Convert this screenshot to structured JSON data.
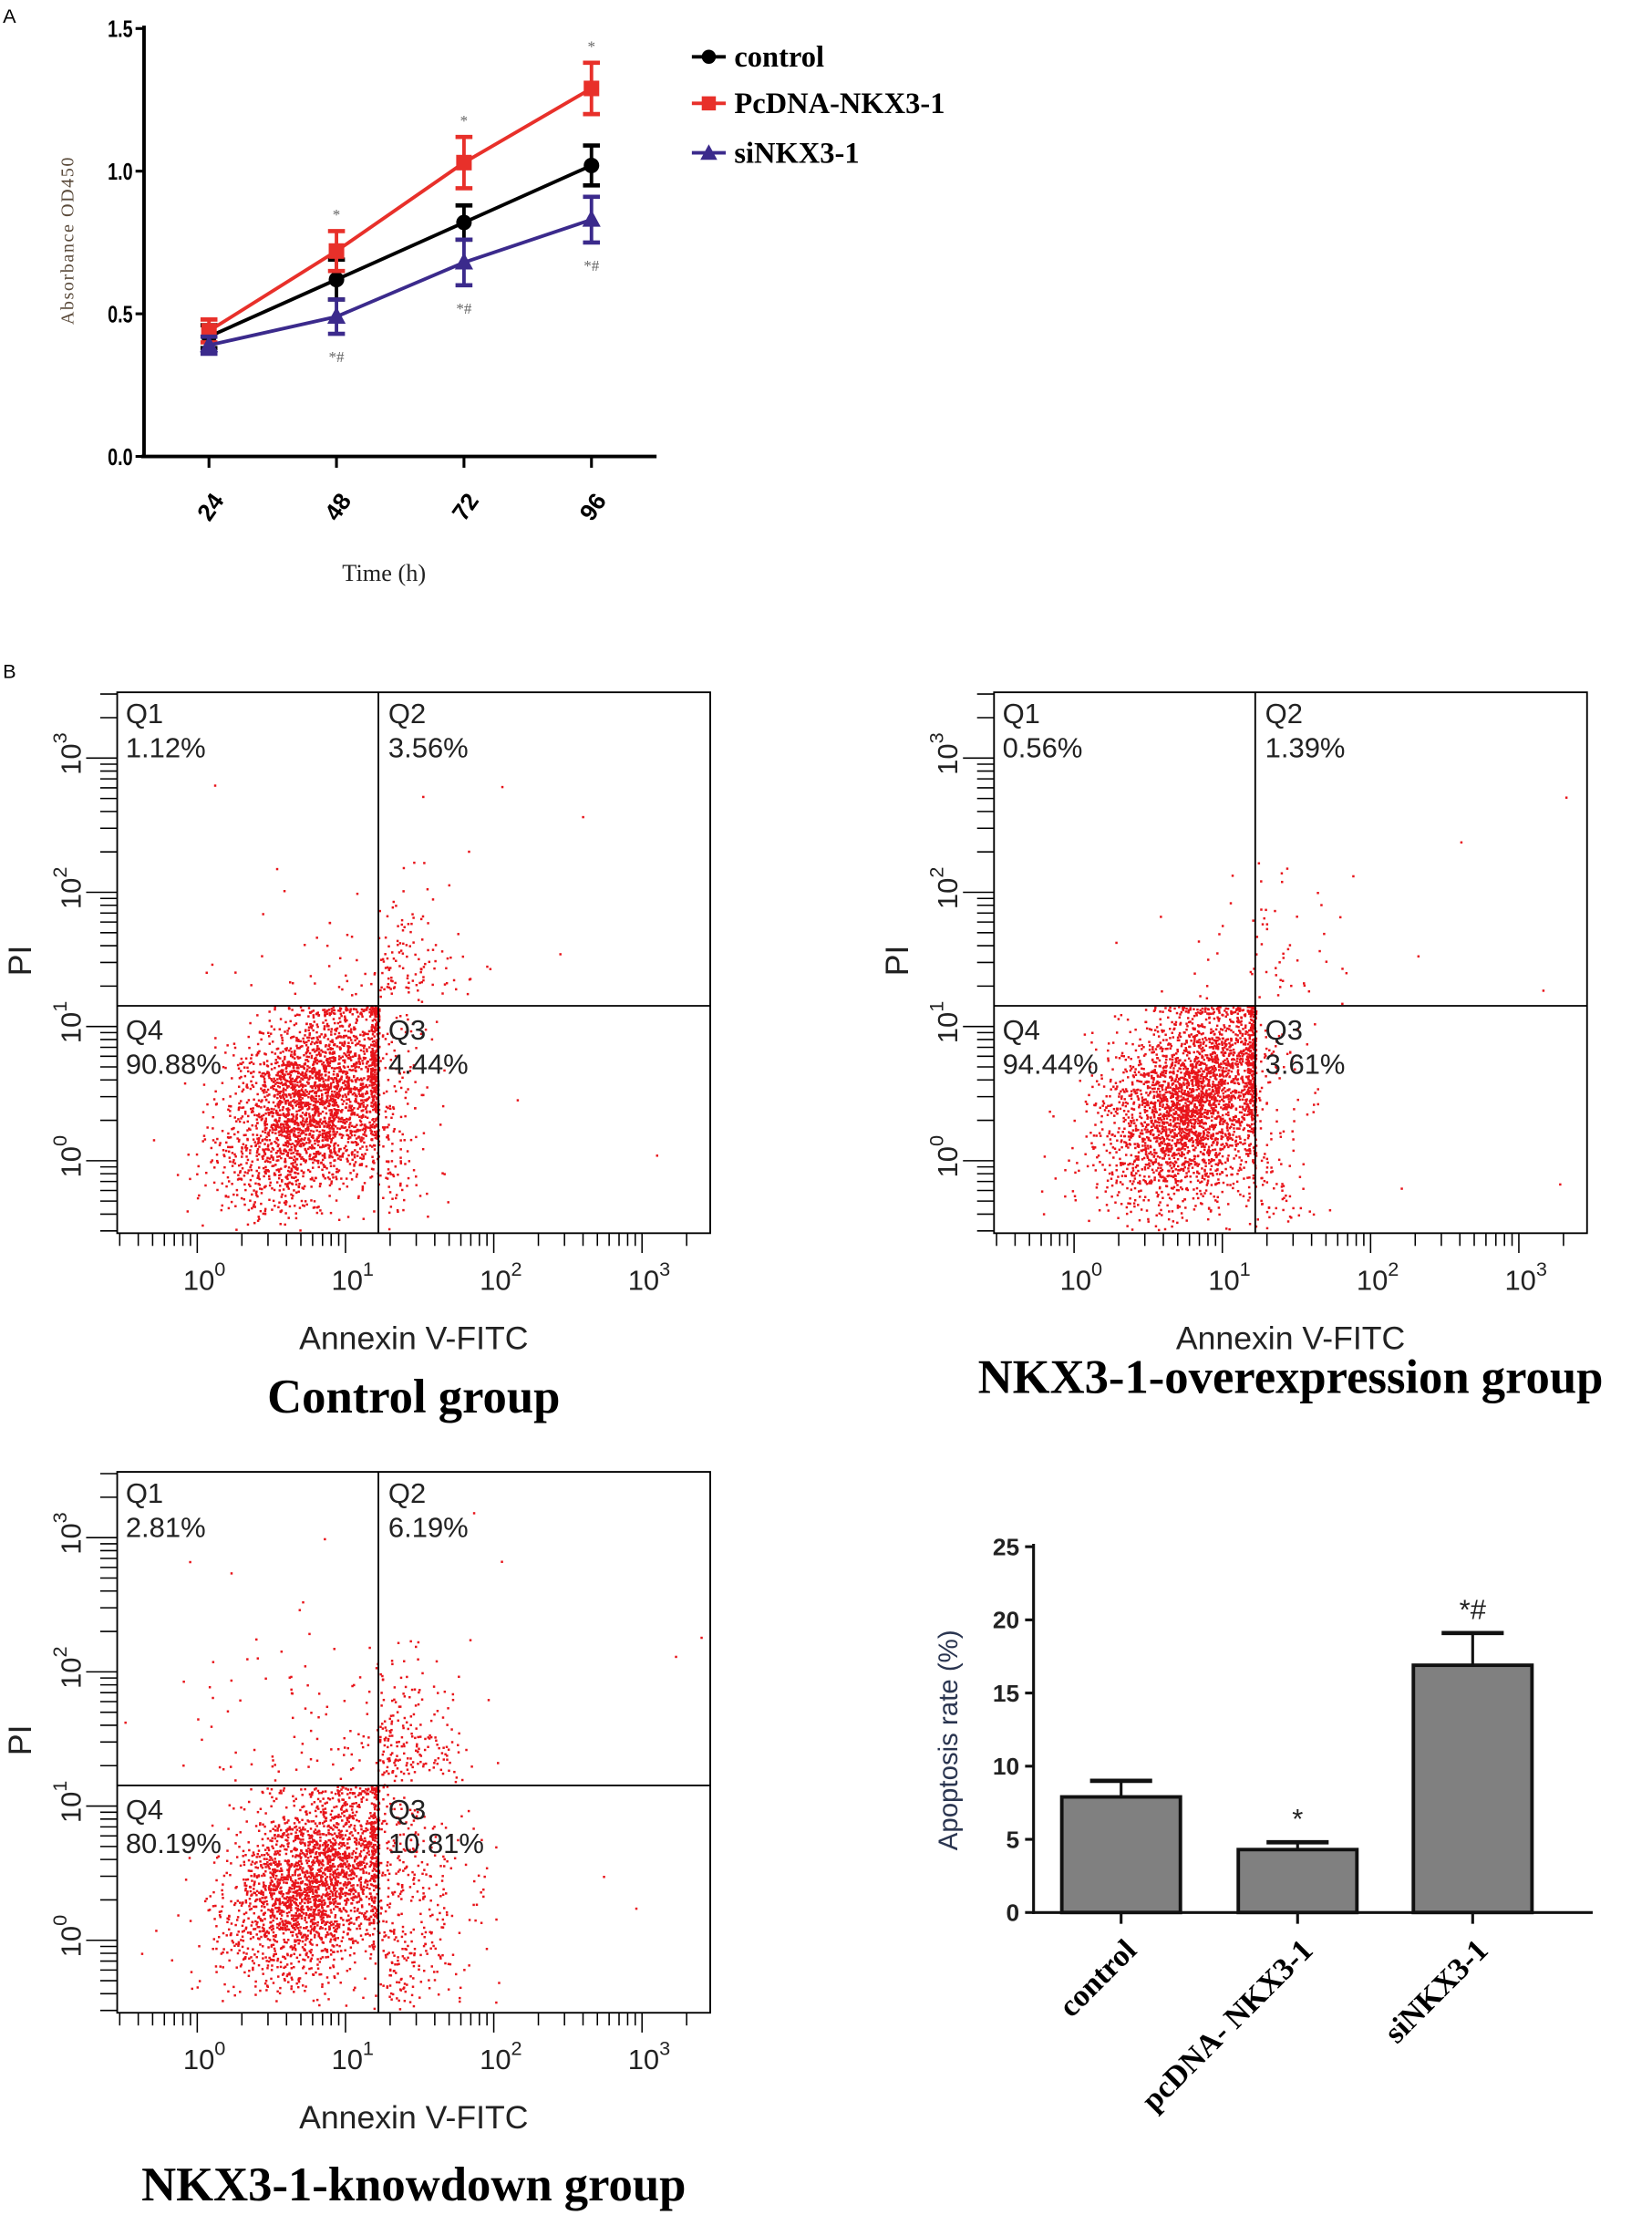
{
  "panel_labels": {
    "a": "A",
    "b": "B"
  },
  "chart_data": [
    {
      "type": "line",
      "title": "",
      "xlabel": "Time (h)",
      "ylabel": "Absorbance  OD450",
      "categories": [
        "24",
        "48",
        "72",
        "96"
      ],
      "ylim": [
        0,
        1.5
      ],
      "yticks": [
        "0.0",
        "0.5",
        "1.0",
        "1.5"
      ],
      "legend_position": "top-right",
      "series": [
        {
          "name": "control",
          "color": "#000000",
          "marker": "circle",
          "values": [
            0.42,
            0.62,
            0.82,
            1.02
          ],
          "errors": [
            0.04,
            0.07,
            0.06,
            0.07
          ],
          "annotations": [
            "",
            "",
            "",
            ""
          ]
        },
        {
          "name": "PcDNA-NKX3-1",
          "color": "#e8302a",
          "marker": "square",
          "values": [
            0.44,
            0.72,
            1.03,
            1.29
          ],
          "errors": [
            0.04,
            0.07,
            0.09,
            0.09
          ],
          "annotations": [
            "",
            "*",
            "*",
            "*"
          ]
        },
        {
          "name": "siNKX3-1",
          "color": "#3b2a8c",
          "marker": "triangle",
          "values": [
            0.39,
            0.49,
            0.68,
            0.83
          ],
          "errors": [
            0.03,
            0.06,
            0.08,
            0.08
          ],
          "annotations": [
            "",
            "*#",
            "*#",
            "*#"
          ]
        }
      ]
    },
    {
      "type": "scatter",
      "title": "Control group",
      "xlabel": "Annexin V-FITC",
      "ylabel": "PI",
      "tick_base": "10",
      "tick_exponents": [
        "0",
        "1",
        "2",
        "3"
      ],
      "xlim_log10": [
        -0.54,
        3.46
      ],
      "ylim_log10": [
        -0.54,
        3.49
      ],
      "color": "#e8141a",
      "quadrants": [
        {
          "name": "Q1",
          "value": "1.12%"
        },
        {
          "name": "Q2",
          "value": "3.56%"
        },
        {
          "name": "Q3",
          "value": "4.44%"
        },
        {
          "name": "Q4",
          "value": "90.88%"
        }
      ]
    },
    {
      "type": "scatter",
      "title": "NKX3-1-overexpression group",
      "xlabel": "Annexin V-FITC",
      "ylabel": "PI",
      "tick_base": "10",
      "tick_exponents": [
        "0",
        "1",
        "2",
        "3"
      ],
      "xlim_log10": [
        -0.54,
        3.46
      ],
      "ylim_log10": [
        -0.54,
        3.49
      ],
      "color": "#e8141a",
      "quadrants": [
        {
          "name": "Q1",
          "value": "0.56%"
        },
        {
          "name": "Q2",
          "value": "1.39%"
        },
        {
          "name": "Q3",
          "value": "3.61%"
        },
        {
          "name": "Q4",
          "value": "94.44%"
        }
      ]
    },
    {
      "type": "scatter",
      "title": "NKX3-1-knowdown group",
      "xlabel": "Annexin V-FITC",
      "ylabel": "PI",
      "tick_base": "10",
      "tick_exponents": [
        "0",
        "1",
        "2",
        "3"
      ],
      "xlim_log10": [
        -0.54,
        3.46
      ],
      "ylim_log10": [
        -0.54,
        3.49
      ],
      "color": "#e8141a",
      "quadrants": [
        {
          "name": "Q1",
          "value": "2.81%"
        },
        {
          "name": "Q2",
          "value": "6.19%"
        },
        {
          "name": "Q3",
          "value": "10.81%"
        },
        {
          "name": "Q4",
          "value": "80.19%"
        }
      ]
    },
    {
      "type": "bar",
      "title": "",
      "xlabel": "",
      "ylabel": "Apoptosis rate (%)",
      "categories": [
        "control",
        "pcDNA- NKX3-1",
        "siNKX3-1"
      ],
      "values": [
        7.9,
        4.3,
        16.9
      ],
      "errors": [
        1.1,
        0.5,
        2.2
      ],
      "annotations": [
        "",
        "*",
        "*#"
      ],
      "ylim": [
        0,
        25
      ],
      "yticks": [
        "0",
        "5",
        "10",
        "15",
        "20",
        "25"
      ],
      "bar_color": "#808080"
    }
  ]
}
